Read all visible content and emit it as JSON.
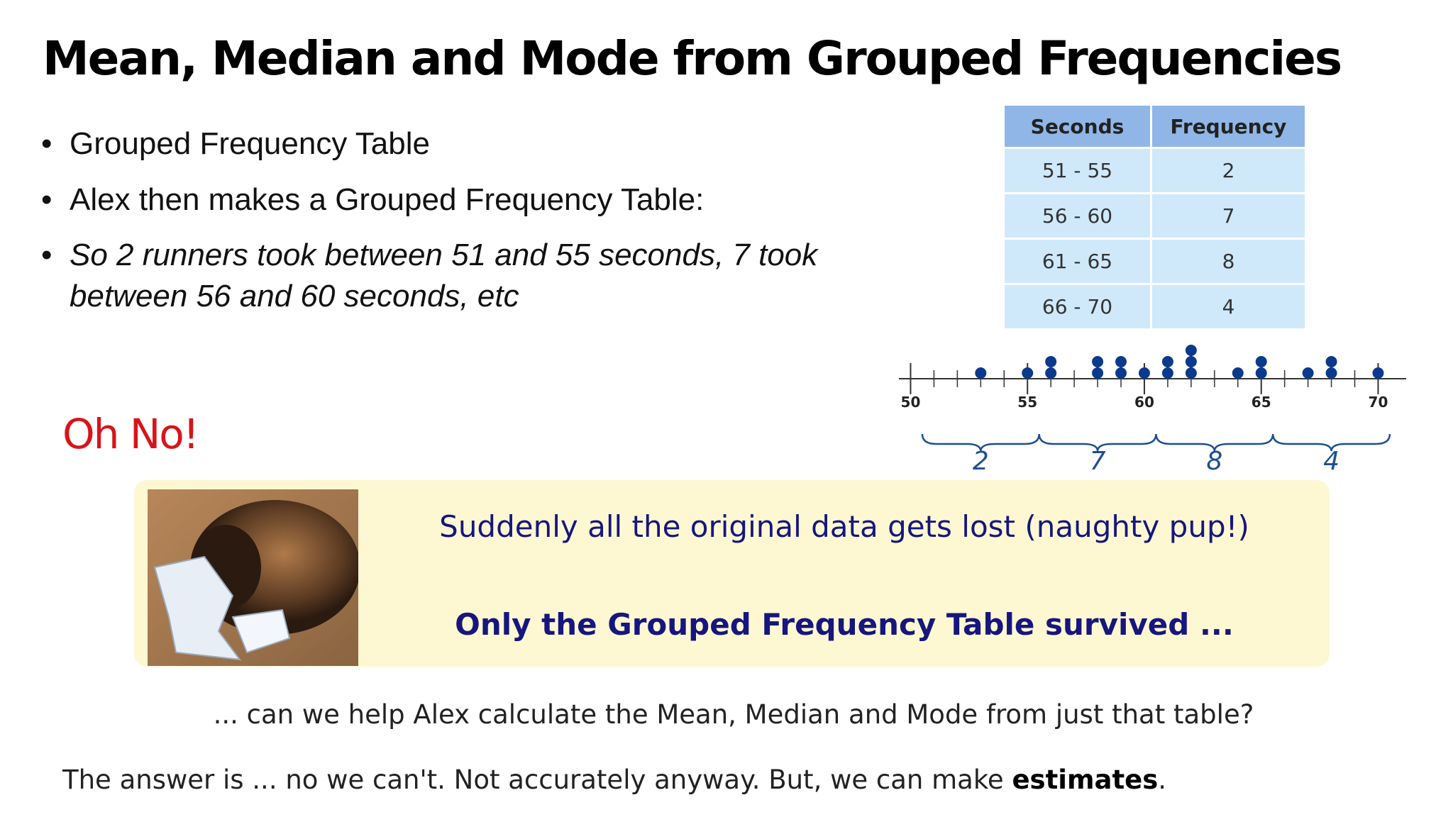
{
  "title": "Mean, Median and Mode from Grouped Frequencies",
  "bullets": [
    "Grouped Frequency Table",
    "Alex then makes a Grouped Frequency Table:",
    "So 2 runners took between 51 and 55 seconds, 7 took",
    "between 56 and 60 seconds, etc"
  ],
  "table": {
    "header": [
      "Seconds",
      "Frequency"
    ],
    "rows": [
      [
        "51 - 55",
        "2"
      ],
      [
        "56 - 60",
        "7"
      ],
      [
        "61 - 65",
        "8"
      ],
      [
        "66 - 70",
        "4"
      ]
    ]
  },
  "dot_plot": {
    "xlim": [
      49.5,
      71.2
    ],
    "xticks": [
      50,
      55,
      60,
      65,
      70
    ],
    "points": [
      {
        "x": 53,
        "count": 1
      },
      {
        "x": 55,
        "count": 1
      },
      {
        "x": 56,
        "count": 2
      },
      {
        "x": 58,
        "count": 2
      },
      {
        "x": 59,
        "count": 2
      },
      {
        "x": 60,
        "count": 1
      },
      {
        "x": 61,
        "count": 2
      },
      {
        "x": 62,
        "count": 3
      },
      {
        "x": 64,
        "count": 1
      },
      {
        "x": 65,
        "count": 2
      },
      {
        "x": 67,
        "count": 1
      },
      {
        "x": 68,
        "count": 2
      },
      {
        "x": 70,
        "count": 1
      }
    ],
    "brace_labels": [
      "2",
      "7",
      "8",
      "4"
    ]
  },
  "exclamation": "Oh No!",
  "story": {
    "line1": "Suddenly all the original data gets lost (naughty pup!)",
    "line2": "Only the Grouped Frequency Table survived ..."
  },
  "question": "... can we help Alex calculate the Mean, Median and Mode from just that table?",
  "answer": {
    "text": "The answer is ... no we can't. Not accurately anyway. But, we can make ",
    "bold": "estimates",
    "end": "."
  }
}
